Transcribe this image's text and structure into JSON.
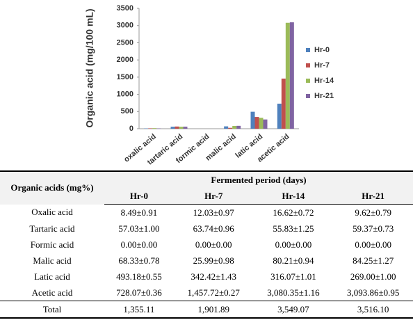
{
  "chart_data": {
    "type": "bar",
    "y_label": "Organic acid (mg/100 mL)",
    "categories": [
      "oxalic acid",
      "tartaric acid",
      "formic acid",
      "malic acid",
      "latic acid",
      "acetic acid"
    ],
    "series": [
      {
        "name": "Hr-0",
        "color": "#4f81bd",
        "values": [
          8.49,
          57.03,
          0,
          68.33,
          493.18,
          728.07
        ]
      },
      {
        "name": "Hr-7",
        "color": "#c0504d",
        "values": [
          12.03,
          63.74,
          0,
          25.99,
          342.42,
          1457.72
        ]
      },
      {
        "name": "Hr-14",
        "color": "#9bbb59",
        "values": [
          16.62,
          55.83,
          0,
          80.21,
          316.07,
          3080.35
        ]
      },
      {
        "name": "Hr-21",
        "color": "#8064a2",
        "values": [
          9.62,
          59.37,
          0,
          84.25,
          269.0,
          3093.86
        ]
      }
    ],
    "ylim": [
      0,
      3500
    ],
    "yticks": [
      0,
      500,
      1000,
      1500,
      2000,
      2500,
      3000,
      3500
    ],
    "legend": "right"
  },
  "table": {
    "header": {
      "row_label": "Organic acids (mg%)",
      "group": "Fermented period (days)",
      "columns": [
        "Hr-0",
        "Hr-7",
        "Hr-14",
        "Hr-21"
      ]
    },
    "rows": [
      [
        "Oxalic acid",
        "8.49±0.91",
        "12.03±0.97",
        "16.62±0.72",
        "9.62±0.79"
      ],
      [
        "Tartaric acid",
        "57.03±1.00",
        "63.74±0.96",
        "55.83±1.25",
        "59.37±0.73"
      ],
      [
        "Formic acid",
        "0.00±0.00",
        "0.00±0.00",
        "0.00±0.00",
        "0.00±0.00"
      ],
      [
        "Malic acid",
        "68.33±0.78",
        "25.99±0.98",
        "80.21±0.94",
        "84.25±1.27"
      ],
      [
        "Latic acid",
        "493.18±0.55",
        "342.42±1.43",
        "316.07±1.01",
        "269.00±1.00"
      ],
      [
        "Acetic acid",
        "728.07±0.36",
        "1,457.72±0.27",
        "3,080.35±1.16",
        "3,093.86±0.95"
      ]
    ],
    "total": [
      "Total",
      "1,355.11",
      "1,901.89",
      "3,549.07",
      "3,516.10"
    ]
  }
}
